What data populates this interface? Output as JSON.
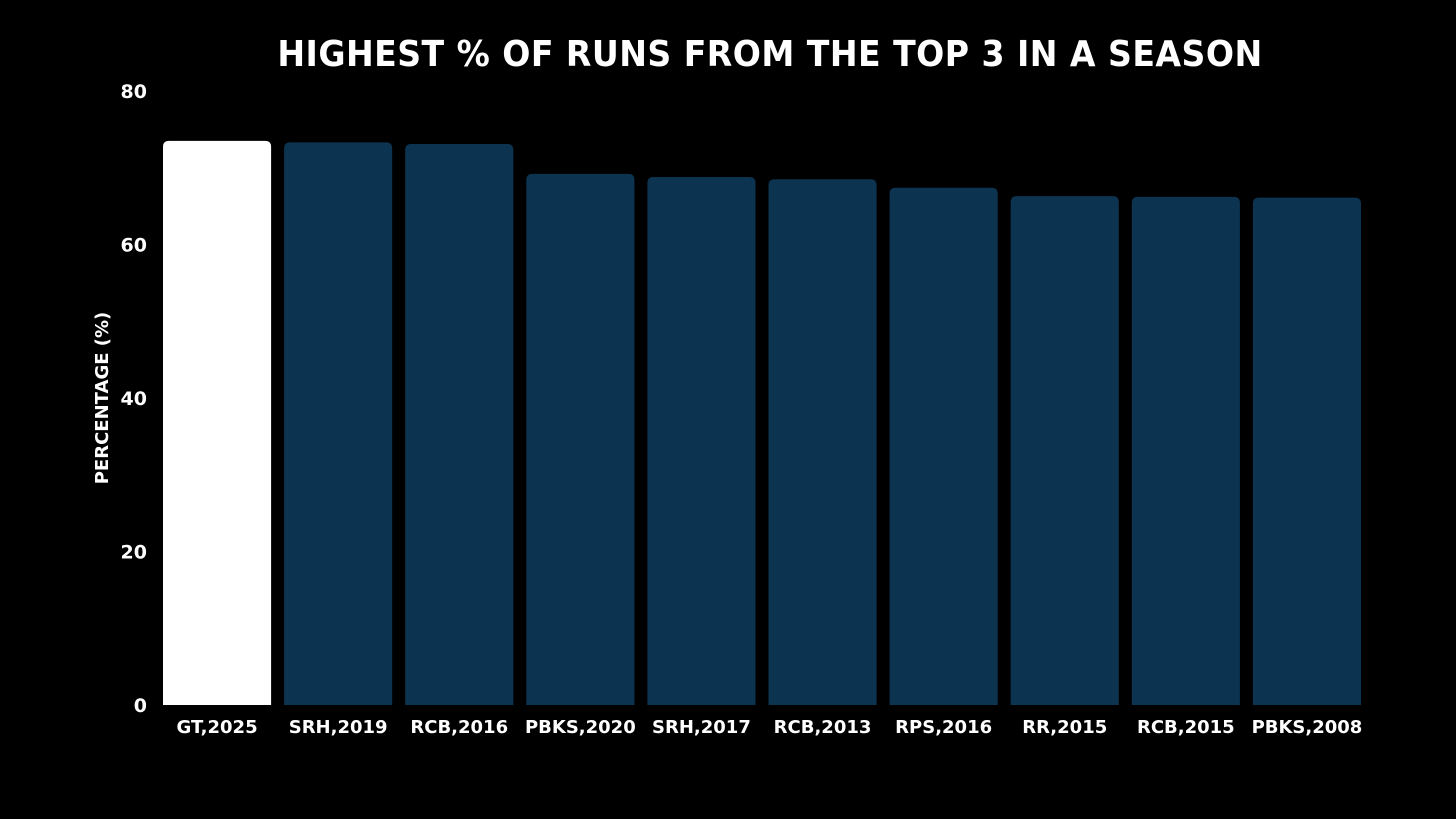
{
  "chart_data": {
    "type": "bar",
    "title": "HIGHEST % OF RUNS FROM THE TOP 3 IN A SEASON",
    "xlabel": "",
    "ylabel": "PERCENTAGE (%)",
    "ylim": [
      0,
      80
    ],
    "yticks": [
      "0",
      "20",
      "40",
      "60",
      "80"
    ],
    "grid": false,
    "legend": "none",
    "categories": [
      "GT,2025",
      "SRH,2019",
      "RCB,2016",
      "PBKS,2020",
      "SRH,2017",
      "RCB,2013",
      "RPS,2016",
      "RR,2015",
      "RCB,2015",
      "PBKS,2008"
    ],
    "values": [
      73.5,
      73.3,
      73.1,
      69.2,
      68.8,
      68.5,
      67.4,
      66.3,
      66.2,
      66.1
    ],
    "highlight_index": 0,
    "colors": {
      "background": "#000000",
      "highlight_bar": "#ffffff",
      "bar": "#0c3450",
      "text": "#ffffff"
    }
  }
}
